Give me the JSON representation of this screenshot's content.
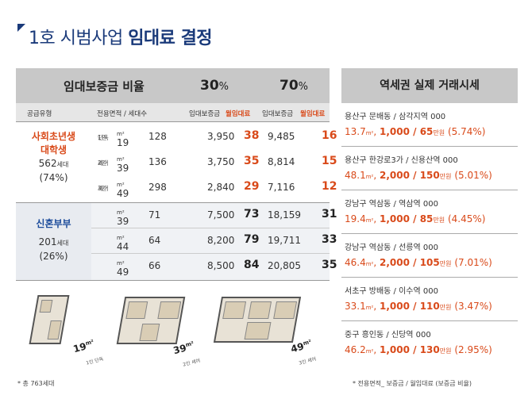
{
  "title": {
    "normal": "1호 시범사업 ",
    "bold": "임대료 결정"
  },
  "table": {
    "header": {
      "label": "임대보증금 비율",
      "p30": "30",
      "p70": "70",
      "pct": "%"
    },
    "subheader": {
      "type": "공급유형",
      "area_units": "전용면적 / 세대수",
      "deposit": "임대보증금",
      "rent": "월임대료"
    },
    "groupA": {
      "line1": "사회초년생",
      "line2": "대학생",
      "count": "562",
      "count_unit": "세대",
      "ratio": "(74%)",
      "rows": [
        {
          "type1": "1인",
          "type2": "단독",
          "area": "19",
          "unit": "m²",
          "count": "128",
          "dep30": "3,950",
          "rent30": "38",
          "dep70": "9,485",
          "rent70": "16"
        },
        {
          "type1": "2인",
          "type2": "셰어",
          "area": "39",
          "unit": "m²",
          "count": "136",
          "dep30": "3,750",
          "rent30": "35",
          "dep70": "8,814",
          "rent70": "15"
        },
        {
          "type1": "3인",
          "type2": "셰어",
          "area": "49",
          "unit": "m²",
          "count": "298",
          "dep30": "2,840",
          "rent30": "29",
          "dep70": "7,116",
          "rent70": "12"
        }
      ]
    },
    "groupB": {
      "line1": "신혼부부",
      "count": "201",
      "count_unit": "세대",
      "ratio": "(26%)",
      "rows": [
        {
          "area": "39",
          "unit": "m²",
          "count": "71",
          "dep30": "7,500",
          "rent30": "73",
          "dep70": "18,159",
          "rent70": "31"
        },
        {
          "area": "44",
          "unit": "m²",
          "count": "64",
          "dep30": "8,200",
          "rent30": "79",
          "dep70": "19,711",
          "rent70": "33"
        },
        {
          "area": "49",
          "unit": "m²",
          "count": "66",
          "dep30": "8,500",
          "rent30": "84",
          "dep70": "20,805",
          "rent70": "35"
        }
      ]
    }
  },
  "plans": [
    {
      "area": "19",
      "unit": "m²",
      "sub": "1인 단독"
    },
    {
      "area": "39",
      "unit": "m²",
      "sub": "2인 셰어"
    },
    {
      "area": "49",
      "unit": "m²",
      "sub": "3인 셰어"
    }
  ],
  "footnote_left": "* 총 763세대",
  "footnote_right": "* 전용면적_ 보증금 / 월임대료 (보증금 비율)",
  "market": {
    "header": "역세권 실제 거래시세",
    "items": [
      {
        "loc": "용산구 문배동 / 삼각지역 000",
        "area": "13.7",
        "unit": "m²",
        "dep": "1,000",
        "rent": "65",
        "won": "만원",
        "ratio": "(5.74%)"
      },
      {
        "loc": "용산구 한강로3가 / 신용산역 000",
        "area": "48.1",
        "unit": "m²",
        "dep": "2,000",
        "rent": "150",
        "won": "만원",
        "ratio": "(5.01%)"
      },
      {
        "loc": "강남구 역삼동 / 역삼역 000",
        "area": "19.4",
        "unit": "m²",
        "dep": "1,000",
        "rent": "85",
        "won": "만원",
        "ratio": "(4.45%)"
      },
      {
        "loc": "강남구 역삼동 / 선릉역 000",
        "area": "46.4",
        "unit": "m²",
        "dep": "2,000",
        "rent": "105",
        "won": "만원",
        "ratio": "(7.01%)"
      },
      {
        "loc": "서초구 방배동 / 이수역 000",
        "area": "33.1",
        "unit": "m²",
        "dep": "1,000",
        "rent": "110",
        "won": "만원",
        "ratio": "(3.47%)"
      },
      {
        "loc": "중구 흥인동 / 신당역 000",
        "area": "46.2",
        "unit": "m²",
        "dep": "1,000",
        "rent": "130",
        "won": "만원",
        "ratio": "(2.95%)"
      }
    ]
  }
}
